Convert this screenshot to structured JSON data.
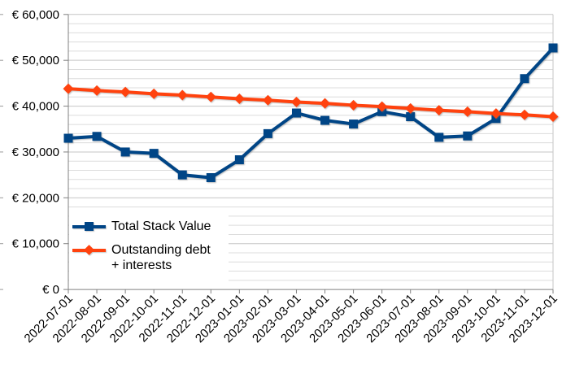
{
  "chart_data": {
    "type": "line",
    "title": "",
    "xlabel": "",
    "ylabel": "",
    "categories": [
      "2022-07-01",
      "2022-08-01",
      "2022-09-01",
      "2022-10-01",
      "2022-11-01",
      "2022-12-01",
      "2023-01-01",
      "2023-02-01",
      "2023-03-01",
      "2023-04-01",
      "2023-05-01",
      "2023-06-01",
      "2023-07-01",
      "2023-08-01",
      "2023-09-01",
      "2023-10-01",
      "2023-11-01",
      "2023-12-01"
    ],
    "series": [
      {
        "name": "Total Stack Value",
        "color": "#004586",
        "marker": "square",
        "values": [
          33000,
          33400,
          30000,
          29700,
          25000,
          24400,
          28300,
          34000,
          38500,
          36900,
          36100,
          38800,
          37700,
          33200,
          33500,
          37300,
          46000,
          52700
        ]
      },
      {
        "name": "Outstanding debt + interests",
        "color": "#FF420E",
        "marker": "diamond",
        "values": [
          43800,
          43400,
          43100,
          42700,
          42400,
          42000,
          41600,
          41300,
          40900,
          40600,
          40200,
          39900,
          39500,
          39100,
          38800,
          38400,
          38100,
          37700
        ]
      }
    ],
    "ylim": [
      0,
      60000
    ],
    "y_major_step": 10000,
    "y_minor_step": 2000,
    "y_tick_labels": [
      "€ 0",
      "€ 10,000",
      "€ 20,000",
      "€ 30,000",
      "€ 40,000",
      "€ 50,000",
      "€ 60,000"
    ],
    "grid": true,
    "legend_position": "inside-lower-left",
    "colors": {
      "grid_minor": "#dcdcdc",
      "grid_major": "#c6c6c6",
      "axis": "#808080",
      "text": "#000000",
      "background": "#ffffff"
    }
  },
  "legend": {
    "items": [
      {
        "label": "Total Stack Value"
      },
      {
        "label": "Outstanding debt + interests",
        "line1": "Outstanding debt",
        "line2": "+ interests"
      }
    ]
  }
}
